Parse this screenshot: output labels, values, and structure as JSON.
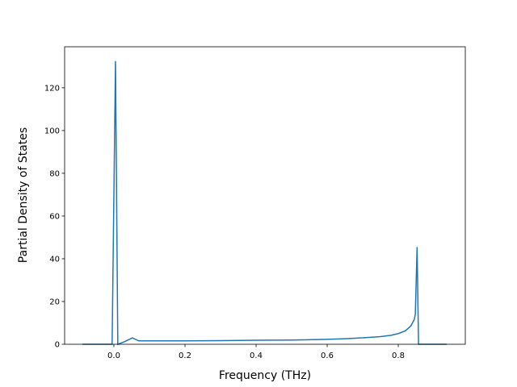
{
  "chart_data": {
    "type": "line",
    "x_label": "Frequency (THz)",
    "y_label": "Partial Density of States",
    "xlim": [
      -0.1386,
      0.9886
    ],
    "ylim": [
      0,
      139.2
    ],
    "xticks": [
      {
        "value": 0,
        "label": "0.0"
      },
      0.2,
      0.4,
      0.6,
      0.8
    ],
    "yticks": [
      0,
      20,
      40,
      60,
      80,
      100,
      120
    ],
    "series": [
      {
        "color": "#1f77b4",
        "x": [
          -0.0886,
          -0.005,
          0.0045,
          0.011,
          0.03,
          0.052,
          0.07,
          0.1,
          0.2,
          0.3,
          0.4,
          0.5,
          0.6,
          0.65,
          0.7,
          0.75,
          0.78,
          0.8,
          0.82,
          0.835,
          0.845,
          0.848,
          0.853,
          0.857,
          0.936
        ],
        "values": [
          0,
          0,
          132.5,
          0,
          1.2,
          3,
          1.6,
          1.6,
          1.6,
          1.7,
          1.9,
          2.0,
          2.3,
          2.6,
          3.0,
          3.6,
          4.2,
          5.0,
          6.3,
          8.5,
          11.5,
          14,
          45.5,
          0,
          0
        ]
      }
    ]
  }
}
